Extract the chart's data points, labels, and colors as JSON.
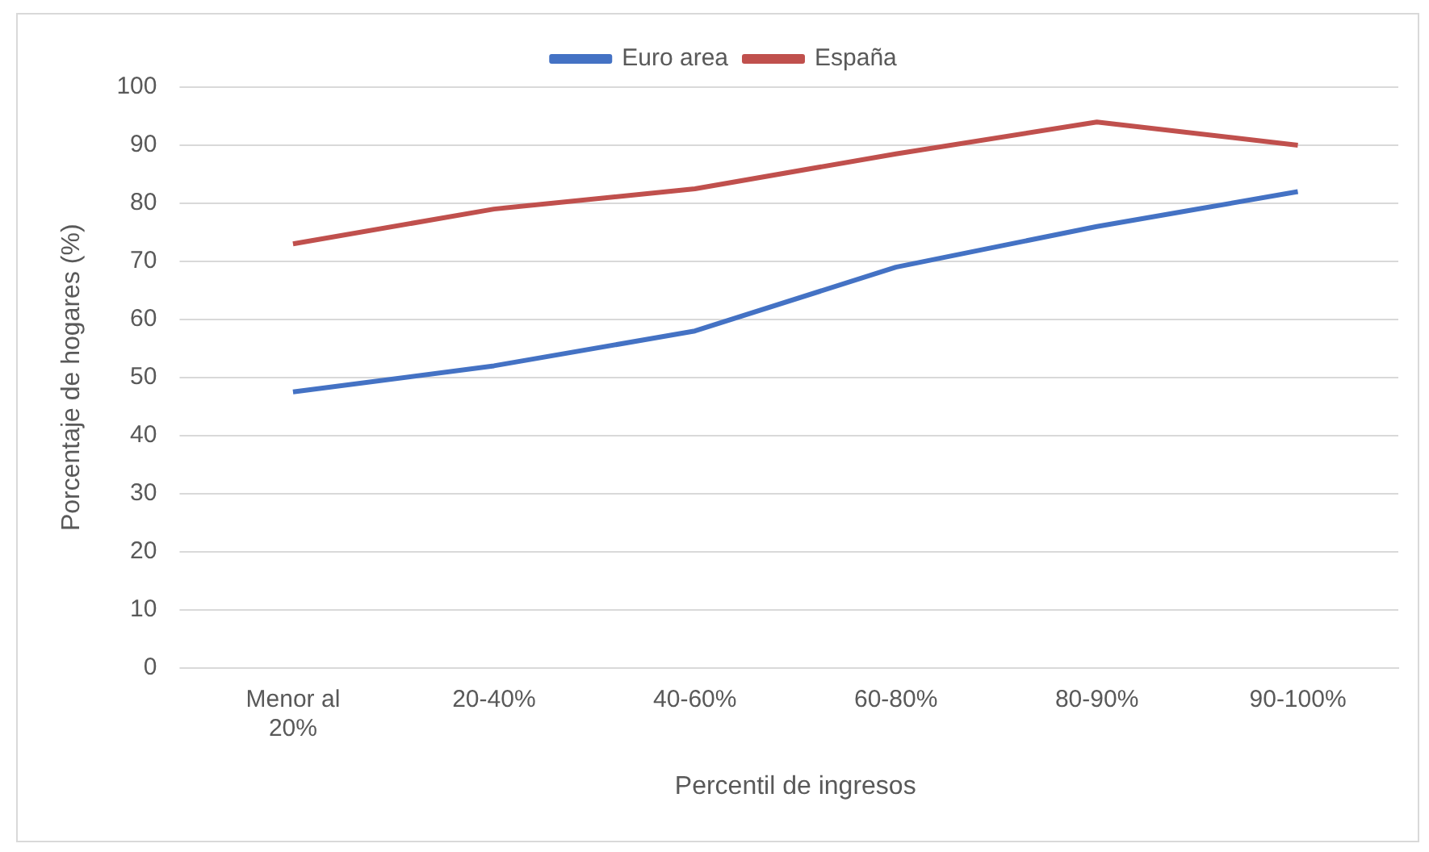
{
  "chart_data": {
    "type": "line",
    "xlabel": "Percentil de ingresos",
    "ylabel": "Porcentaje de hogares (%)",
    "categories": [
      "Menor al 20%",
      "20-40%",
      "40-60%",
      "60-80%",
      "80-90%",
      "90-100%"
    ],
    "series": [
      {
        "name": "Euro area",
        "color": "#4472c4",
        "values": [
          47.5,
          52,
          58,
          69,
          76,
          82
        ]
      },
      {
        "name": "España",
        "color": "#c0504d",
        "values": [
          73,
          79,
          82.5,
          88.5,
          94,
          90
        ]
      }
    ],
    "ylim": [
      0,
      100
    ],
    "yticks": [
      0,
      10,
      20,
      30,
      40,
      50,
      60,
      70,
      80,
      90,
      100
    ],
    "grid": "y",
    "legend": "top",
    "marker": "none",
    "line_style": "solid"
  }
}
